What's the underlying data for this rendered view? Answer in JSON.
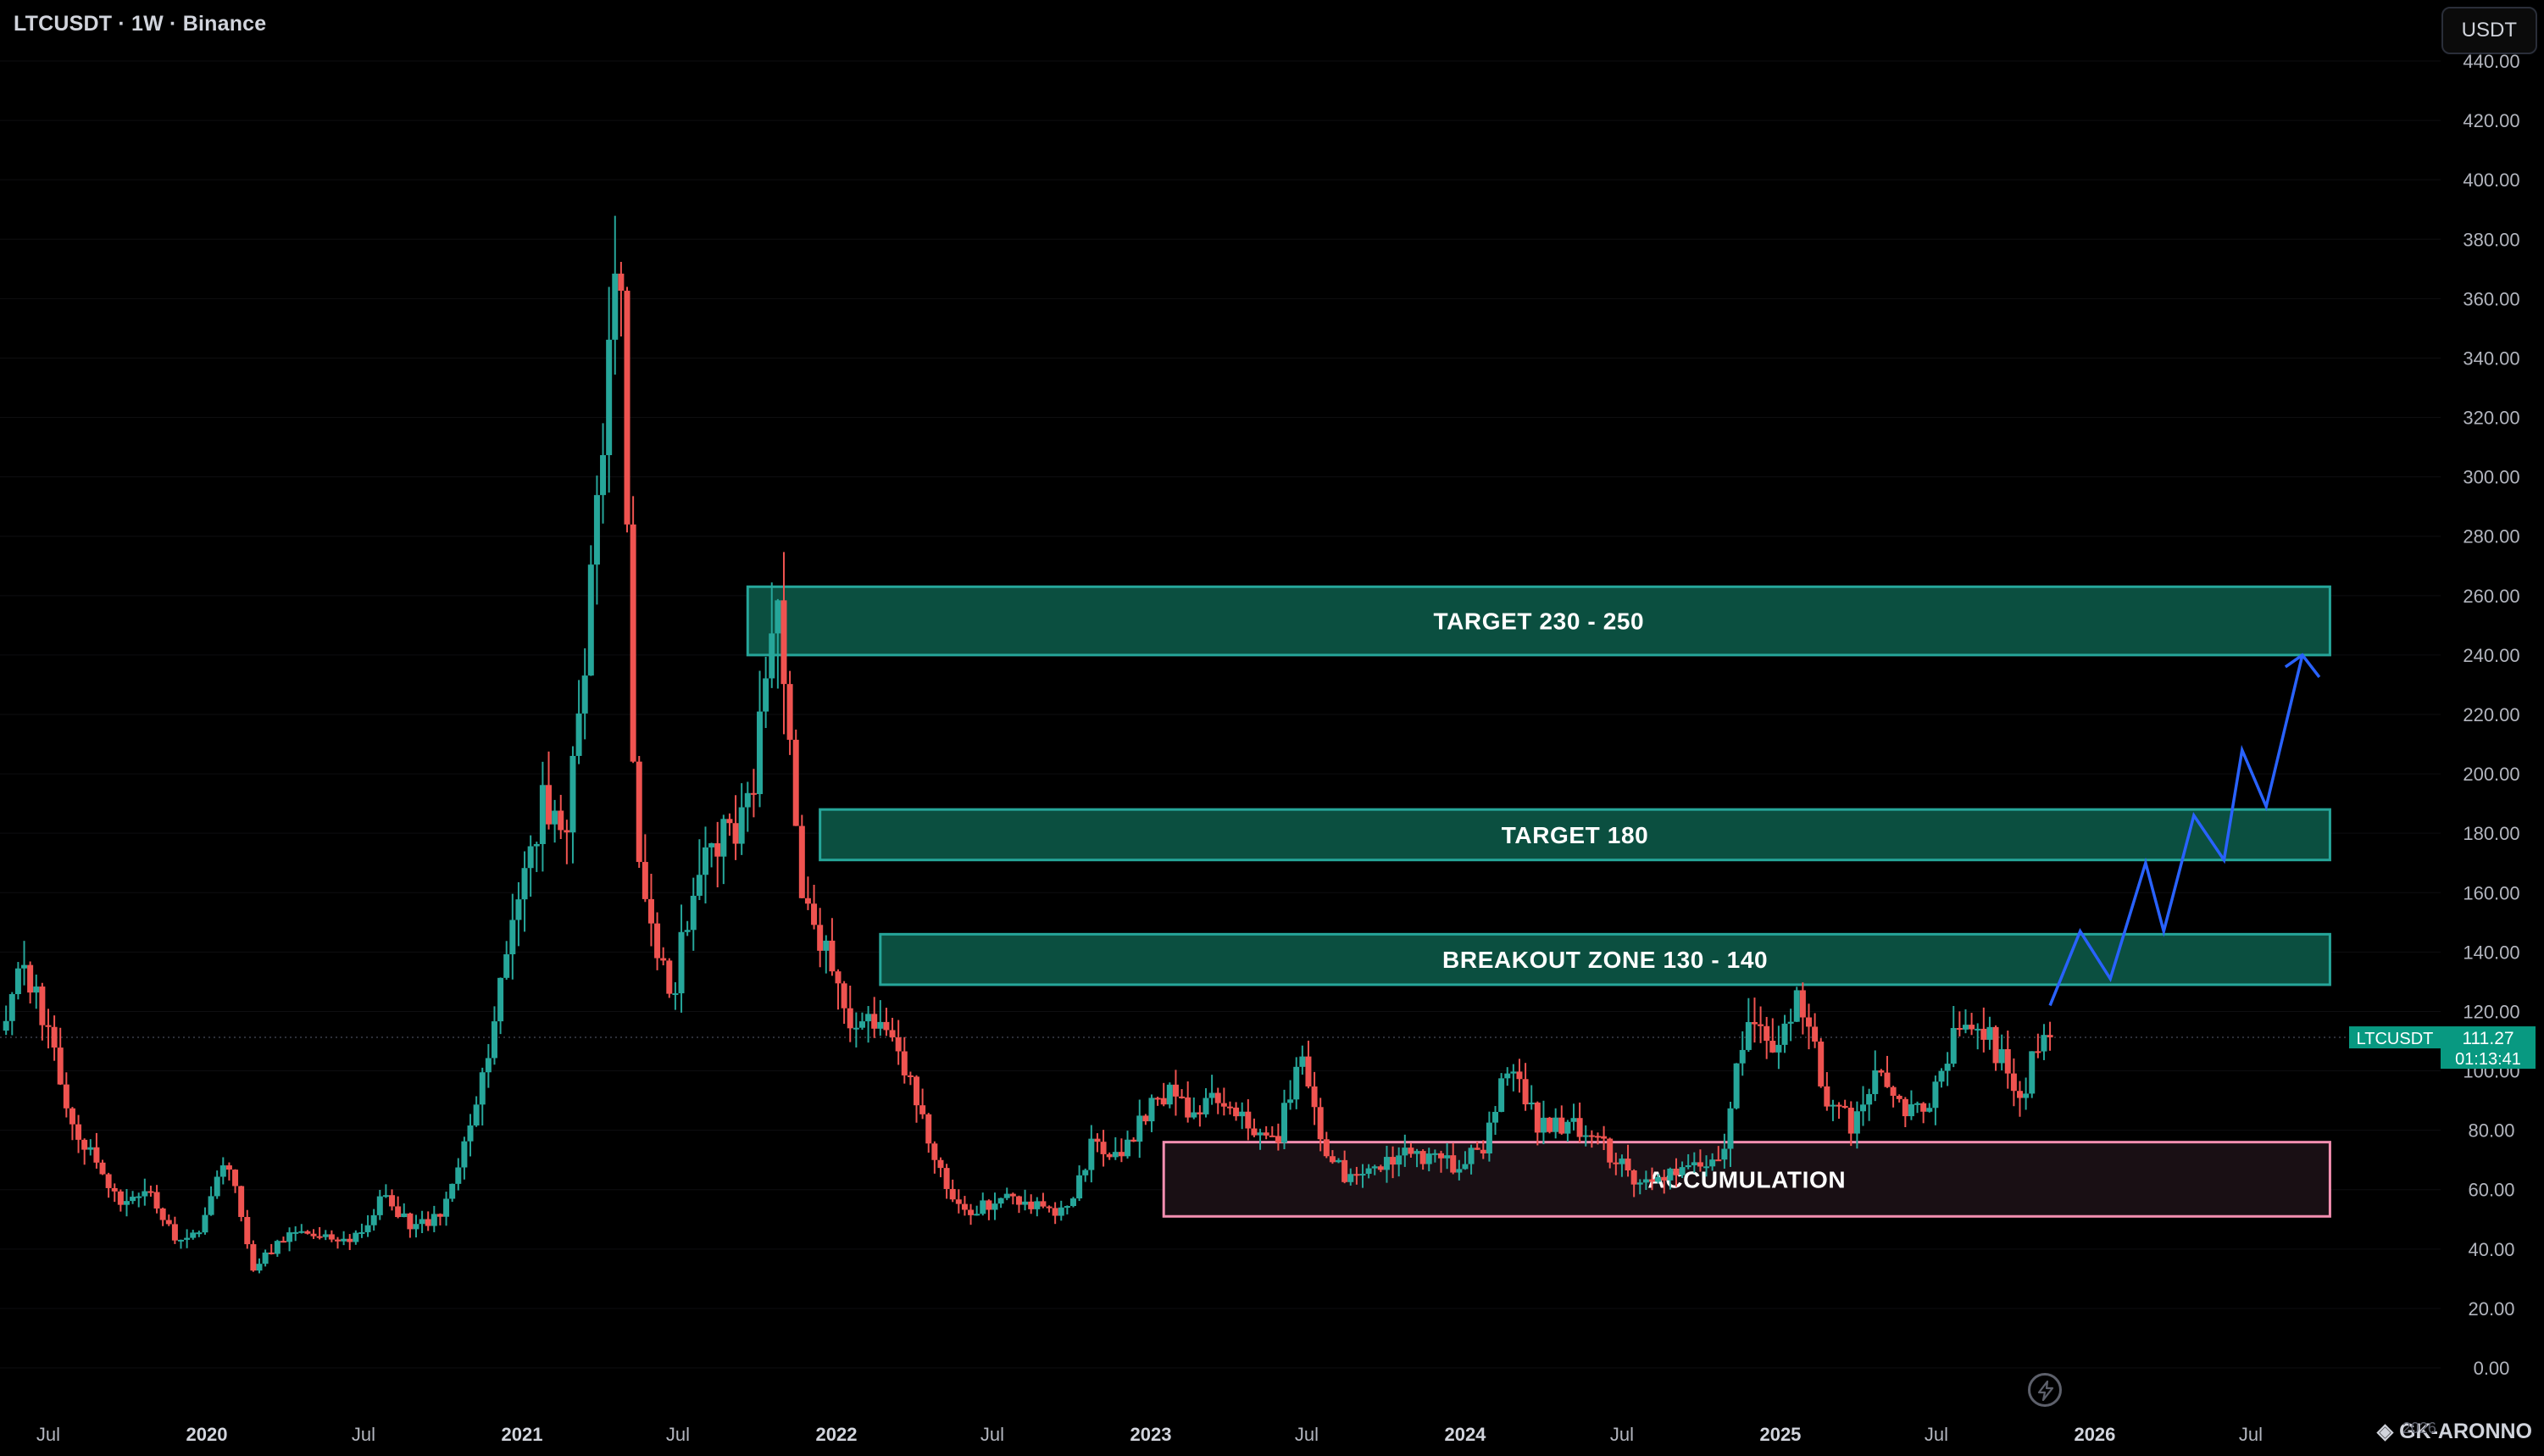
{
  "header": {
    "symbol_title": "LTCUSDT · 1W · Binance",
    "currency_button": "USDT"
  },
  "watermark": {
    "text": "GK-ARONNO",
    "ghost_text": "2026"
  },
  "colors": {
    "background": "#000000",
    "up_candle": "#26a69a",
    "down_candle": "#ef5350",
    "zone_fill": "#0b4f40",
    "zone_border": "#26a69a",
    "accumulation_fill": "#190f14",
    "accumulation_border": "#f48fb1",
    "projection_line": "#2962ff",
    "price_label_bg": "#089981",
    "axis_text": "#b2b5be"
  },
  "chart_data": {
    "type": "candlestick",
    "symbol": "LTCUSDT",
    "interval": "1W",
    "exchange": "Binance",
    "ylim": [
      0,
      440
    ],
    "y_ticks": [
      "0.00",
      "20.00",
      "40.00",
      "60.00",
      "80.00",
      "100.00",
      "120.00",
      "140.00",
      "160.00",
      "180.00",
      "200.00",
      "220.00",
      "240.00",
      "260.00",
      "280.00",
      "300.00",
      "320.00",
      "340.00",
      "360.00",
      "380.00",
      "400.00",
      "420.00",
      "440.00"
    ],
    "y_tick_values": [
      0,
      20,
      40,
      60,
      80,
      100,
      120,
      140,
      160,
      180,
      200,
      220,
      240,
      260,
      280,
      300,
      320,
      340,
      360,
      380,
      400,
      420,
      440
    ],
    "x_ticks": [
      {
        "label": "Jul",
        "date": "2019-07"
      },
      {
        "label": "2020",
        "date": "2020-01"
      },
      {
        "label": "Jul",
        "date": "2020-07"
      },
      {
        "label": "2021",
        "date": "2021-01"
      },
      {
        "label": "Jul",
        "date": "2021-07"
      },
      {
        "label": "2022",
        "date": "2022-01"
      },
      {
        "label": "Jul",
        "date": "2022-07"
      },
      {
        "label": "2023",
        "date": "2023-01"
      },
      {
        "label": "Jul",
        "date": "2023-07"
      },
      {
        "label": "2024",
        "date": "2024-01"
      },
      {
        "label": "Jul",
        "date": "2024-07"
      },
      {
        "label": "2025",
        "date": "2025-01"
      },
      {
        "label": "Jul",
        "date": "2025-07"
      },
      {
        "label": "2026",
        "date": "2026-01"
      },
      {
        "label": "Jul",
        "date": "2026-07"
      }
    ],
    "price_anchors": [
      {
        "date": "2019-05",
        "price": 100
      },
      {
        "date": "2019-06",
        "price": 135
      },
      {
        "date": "2019-07",
        "price": 120
      },
      {
        "date": "2019-08",
        "price": 85
      },
      {
        "date": "2019-09",
        "price": 68
      },
      {
        "date": "2019-10",
        "price": 56
      },
      {
        "date": "2019-11",
        "price": 60
      },
      {
        "date": "2019-12",
        "price": 43
      },
      {
        "date": "2020-01",
        "price": 48
      },
      {
        "date": "2020-02",
        "price": 72
      },
      {
        "date": "2020-03",
        "price": 33
      },
      {
        "date": "2020-04",
        "price": 43
      },
      {
        "date": "2020-05",
        "price": 45
      },
      {
        "date": "2020-07",
        "price": 44
      },
      {
        "date": "2020-08",
        "price": 58
      },
      {
        "date": "2020-09",
        "price": 47
      },
      {
        "date": "2020-10",
        "price": 50
      },
      {
        "date": "2020-11",
        "price": 75
      },
      {
        "date": "2020-12",
        "price": 110
      },
      {
        "date": "2021-01",
        "price": 150
      },
      {
        "date": "2021-02",
        "price": 190
      },
      {
        "date": "2021-03",
        "price": 185
      },
      {
        "date": "2021-04",
        "price": 270
      },
      {
        "date": "2021-05",
        "price": 390
      },
      {
        "date": "2021-05-20",
        "price": 180
      },
      {
        "date": "2021-06",
        "price": 150
      },
      {
        "date": "2021-07",
        "price": 125
      },
      {
        "date": "2021-08",
        "price": 170
      },
      {
        "date": "2021-09",
        "price": 180
      },
      {
        "date": "2021-10",
        "price": 190
      },
      {
        "date": "2021-11",
        "price": 265
      },
      {
        "date": "2021-12",
        "price": 155
      },
      {
        "date": "2022-01",
        "price": 140
      },
      {
        "date": "2022-02",
        "price": 110
      },
      {
        "date": "2022-03",
        "price": 120
      },
      {
        "date": "2022-04",
        "price": 100
      },
      {
        "date": "2022-05",
        "price": 70
      },
      {
        "date": "2022-06",
        "price": 52
      },
      {
        "date": "2022-07",
        "price": 55
      },
      {
        "date": "2022-08",
        "price": 58
      },
      {
        "date": "2022-09",
        "price": 54
      },
      {
        "date": "2022-10",
        "price": 53
      },
      {
        "date": "2022-11",
        "price": 75
      },
      {
        "date": "2022-12",
        "price": 70
      },
      {
        "date": "2023-01",
        "price": 85
      },
      {
        "date": "2023-02",
        "price": 95
      },
      {
        "date": "2023-03",
        "price": 85
      },
      {
        "date": "2023-04",
        "price": 92
      },
      {
        "date": "2023-05",
        "price": 82
      },
      {
        "date": "2023-06",
        "price": 75
      },
      {
        "date": "2023-07",
        "price": 105
      },
      {
        "date": "2023-08",
        "price": 70
      },
      {
        "date": "2023-09",
        "price": 63
      },
      {
        "date": "2023-10",
        "price": 68
      },
      {
        "date": "2023-11",
        "price": 72
      },
      {
        "date": "2023-12",
        "price": 70
      },
      {
        "date": "2024-01",
        "price": 68
      },
      {
        "date": "2024-02",
        "price": 75
      },
      {
        "date": "2024-03",
        "price": 105
      },
      {
        "date": "2024-04",
        "price": 82
      },
      {
        "date": "2024-05",
        "price": 82
      },
      {
        "date": "2024-06",
        "price": 80
      },
      {
        "date": "2024-07",
        "price": 70
      },
      {
        "date": "2024-08",
        "price": 62
      },
      {
        "date": "2024-09",
        "price": 65
      },
      {
        "date": "2024-10",
        "price": 68
      },
      {
        "date": "2024-11",
        "price": 70
      },
      {
        "date": "2024-12",
        "price": 120
      },
      {
        "date": "2025-01",
        "price": 105
      },
      {
        "date": "2025-02",
        "price": 125
      },
      {
        "date": "2025-03",
        "price": 92
      },
      {
        "date": "2025-04",
        "price": 82
      },
      {
        "date": "2025-05",
        "price": 98
      },
      {
        "date": "2025-06",
        "price": 88
      },
      {
        "date": "2025-07",
        "price": 88
      },
      {
        "date": "2025-08",
        "price": 115
      },
      {
        "date": "2025-09",
        "price": 115
      },
      {
        "date": "2025-10",
        "price": 98
      },
      {
        "date": "2025-10-20",
        "price": 92
      },
      {
        "date": "2025-11",
        "price": 111.27
      }
    ],
    "current_price": {
      "symbol_label": "LTCUSDT",
      "price": "111.27",
      "countdown": "01:13:41",
      "value": 111.27
    },
    "zones": [
      {
        "label": "TARGET 230 - 250",
        "low": 240,
        "high": 263,
        "start": "2021-09-20",
        "end": "2026-10-01",
        "kind": "target"
      },
      {
        "label": "TARGET 180",
        "low": 171,
        "high": 188,
        "start": "2021-12-13",
        "end": "2026-10-01",
        "kind": "target"
      },
      {
        "label": "BREAKOUT ZONE 130 - 140",
        "low": 129,
        "high": 146,
        "start": "2022-02-21",
        "end": "2026-10-01",
        "kind": "target"
      },
      {
        "label": "ACCUMULATION",
        "low": 51,
        "high": 76,
        "start": "2023-01-16",
        "end": "2026-10-01",
        "kind": "accumulation"
      }
    ],
    "projection_path": [
      {
        "date": "2025-11-10",
        "price": 122
      },
      {
        "date": "2025-12-15",
        "price": 147
      },
      {
        "date": "2026-01-19",
        "price": 131
      },
      {
        "date": "2026-03-01",
        "price": 170
      },
      {
        "date": "2026-03-22",
        "price": 147
      },
      {
        "date": "2026-04-26",
        "price": 186
      },
      {
        "date": "2026-05-31",
        "price": 171
      },
      {
        "date": "2026-06-21",
        "price": 208
      },
      {
        "date": "2026-07-19",
        "price": 189
      },
      {
        "date": "2026-08-30",
        "price": 240
      }
    ]
  }
}
